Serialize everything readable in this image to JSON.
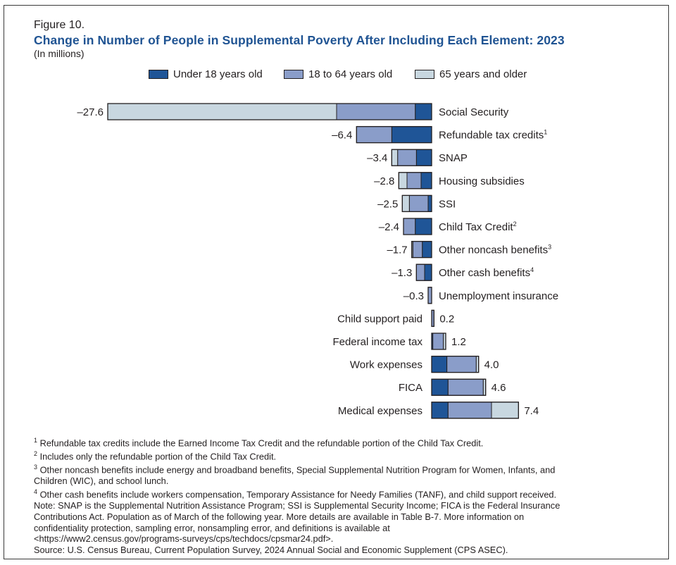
{
  "figure": {
    "label": "Figure 10.",
    "title": "Change in Number of People in Supplemental Poverty After Including Each Element: 2023",
    "subtitle": "(In millions)"
  },
  "legend": [
    {
      "name": "Under 18 years old",
      "color": "#1f5597"
    },
    {
      "name": "18 to 64 years old",
      "color": "#8a9dc9"
    },
    {
      "name": "65 years and older",
      "color": "#c8d7e0"
    }
  ],
  "chart_data": {
    "type": "bar",
    "orientation": "horizontal",
    "stacked": true,
    "title": "Change in Number of People in Supplemental Poverty After Including Each Element: 2023",
    "subtitle": "(In millions)",
    "xlabel": "",
    "ylabel": "",
    "xlim": [
      -27.6,
      7.4
    ],
    "grid": false,
    "legend_position": "top-center",
    "categories": [
      {
        "label": "Social Security",
        "sup": ""
      },
      {
        "label": "Refundable tax credits",
        "sup": "1"
      },
      {
        "label": "SNAP",
        "sup": ""
      },
      {
        "label": "Housing subsidies",
        "sup": ""
      },
      {
        "label": "SSI",
        "sup": ""
      },
      {
        "label": "Child Tax Credit",
        "sup": "2"
      },
      {
        "label": "Other noncash benefits",
        "sup": "3"
      },
      {
        "label": "Other cash benefits",
        "sup": "4"
      },
      {
        "label": "Unemployment insurance",
        "sup": ""
      },
      {
        "label": "Child support paid",
        "sup": ""
      },
      {
        "label": "Federal income tax",
        "sup": ""
      },
      {
        "label": "Work expenses",
        "sup": ""
      },
      {
        "label": "FICA",
        "sup": ""
      },
      {
        "label": "Medical expenses",
        "sup": ""
      }
    ],
    "totals": [
      -27.6,
      -6.4,
      -3.4,
      -2.8,
      -2.5,
      -2.4,
      -1.7,
      -1.3,
      -0.3,
      0.2,
      1.2,
      4.0,
      4.6,
      7.4
    ],
    "total_labels": [
      "–27.6",
      "–6.4",
      "–3.4",
      "–2.8",
      "–2.5",
      "–2.4",
      "–1.7",
      "–1.3",
      "–0.3",
      "0.2",
      "1.2",
      "4.0",
      "4.6",
      "7.4"
    ],
    "series": [
      {
        "name": "Under 18 years old",
        "color": "#1f5597",
        "values": [
          -1.4,
          -3.4,
          -1.3,
          -0.9,
          -0.3,
          -1.4,
          -0.8,
          -0.6,
          0.0,
          0.0,
          0.1,
          1.3,
          1.4,
          1.4
        ]
      },
      {
        "name": "18 to 64 years old",
        "color": "#8a9dc9",
        "values": [
          -6.7,
          -3.0,
          -1.6,
          -1.2,
          -1.6,
          -1.0,
          -0.8,
          -0.7,
          -0.3,
          0.2,
          0.9,
          2.5,
          3.0,
          3.7
        ]
      },
      {
        "name": "65 years and older",
        "color": "#c8d7e0",
        "values": [
          -19.5,
          0.0,
          -0.5,
          -0.7,
          -0.6,
          0.0,
          -0.1,
          0.0,
          0.0,
          0.0,
          0.2,
          0.2,
          0.2,
          2.3
        ]
      }
    ]
  },
  "footnotes": [
    {
      "sup": "1",
      "text": " Refundable tax credits include the Earned Income Tax Credit and the refundable portion of the Child Tax Credit."
    },
    {
      "sup": "2",
      "text": " Includes only the refundable portion of the Child Tax Credit."
    },
    {
      "sup": "3",
      "text": " Other noncash benefits include energy and broadband benefits, Special Supplemental Nutrition Program for Women, Infants, and"
    },
    {
      "sup": "",
      "text": "Children (WIC), and school lunch."
    },
    {
      "sup": "4",
      "text": " Other cash benefits include workers compensation, Temporary Assistance for Needy Families (TANF), and child support received."
    },
    {
      "sup": "",
      "text": "Note: SNAP is the Supplemental Nutrition Assistance Program; SSI is Supplemental Security Income; FICA is the Federal Insurance"
    },
    {
      "sup": "",
      "text": "Contributions Act. Population as of March of the following year. More details are available in Table B-7. More information on"
    },
    {
      "sup": "",
      "text": "confidentiality protection, sampling error, nonsampling error, and definitions is available at"
    },
    {
      "sup": "",
      "text": "<https://www2.census.gov/programs-surveys/cps/techdocs/cpsmar24.pdf>."
    },
    {
      "sup": "",
      "text": "Source: U.S. Census Bureau, Current Population Survey, 2024 Annual Social and Economic Supplement (CPS ASEC)."
    }
  ]
}
